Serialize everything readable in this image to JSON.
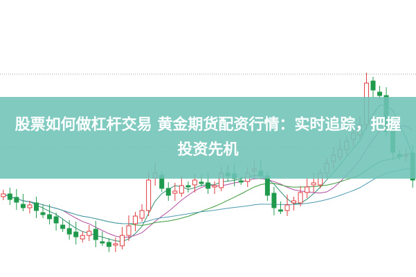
{
  "title": "股票如何做杠杆交易 黄金期货配资行情：实时追踪，把握投资先机",
  "colors": {
    "up": "#e03a3e",
    "down": "#1f9a4c",
    "banner": "#6ec3b7",
    "ma5": "#2f8f6f",
    "ma10": "#b04aa0",
    "ma20": "#3a9a3a",
    "ma60": "#4a9ab0"
  },
  "chart_data": {
    "type": "candlestick",
    "grid": "dotted horizontal",
    "close": [
      120,
      112,
      108,
      100,
      104,
      96,
      90,
      84,
      78,
      70,
      62,
      58,
      60,
      66,
      54,
      50,
      44,
      48,
      60,
      74,
      88,
      96,
      140,
      150,
      128,
      118,
      124,
      132,
      130,
      140,
      136,
      128,
      132,
      150,
      146,
      142,
      138,
      150,
      156,
      146,
      118,
      100,
      96,
      104,
      110,
      122,
      130,
      136,
      150,
      164,
      176,
      184,
      196,
      208,
      220,
      280,
      270,
      262,
      210,
      180,
      174,
      176,
      140
    ]
  }
}
